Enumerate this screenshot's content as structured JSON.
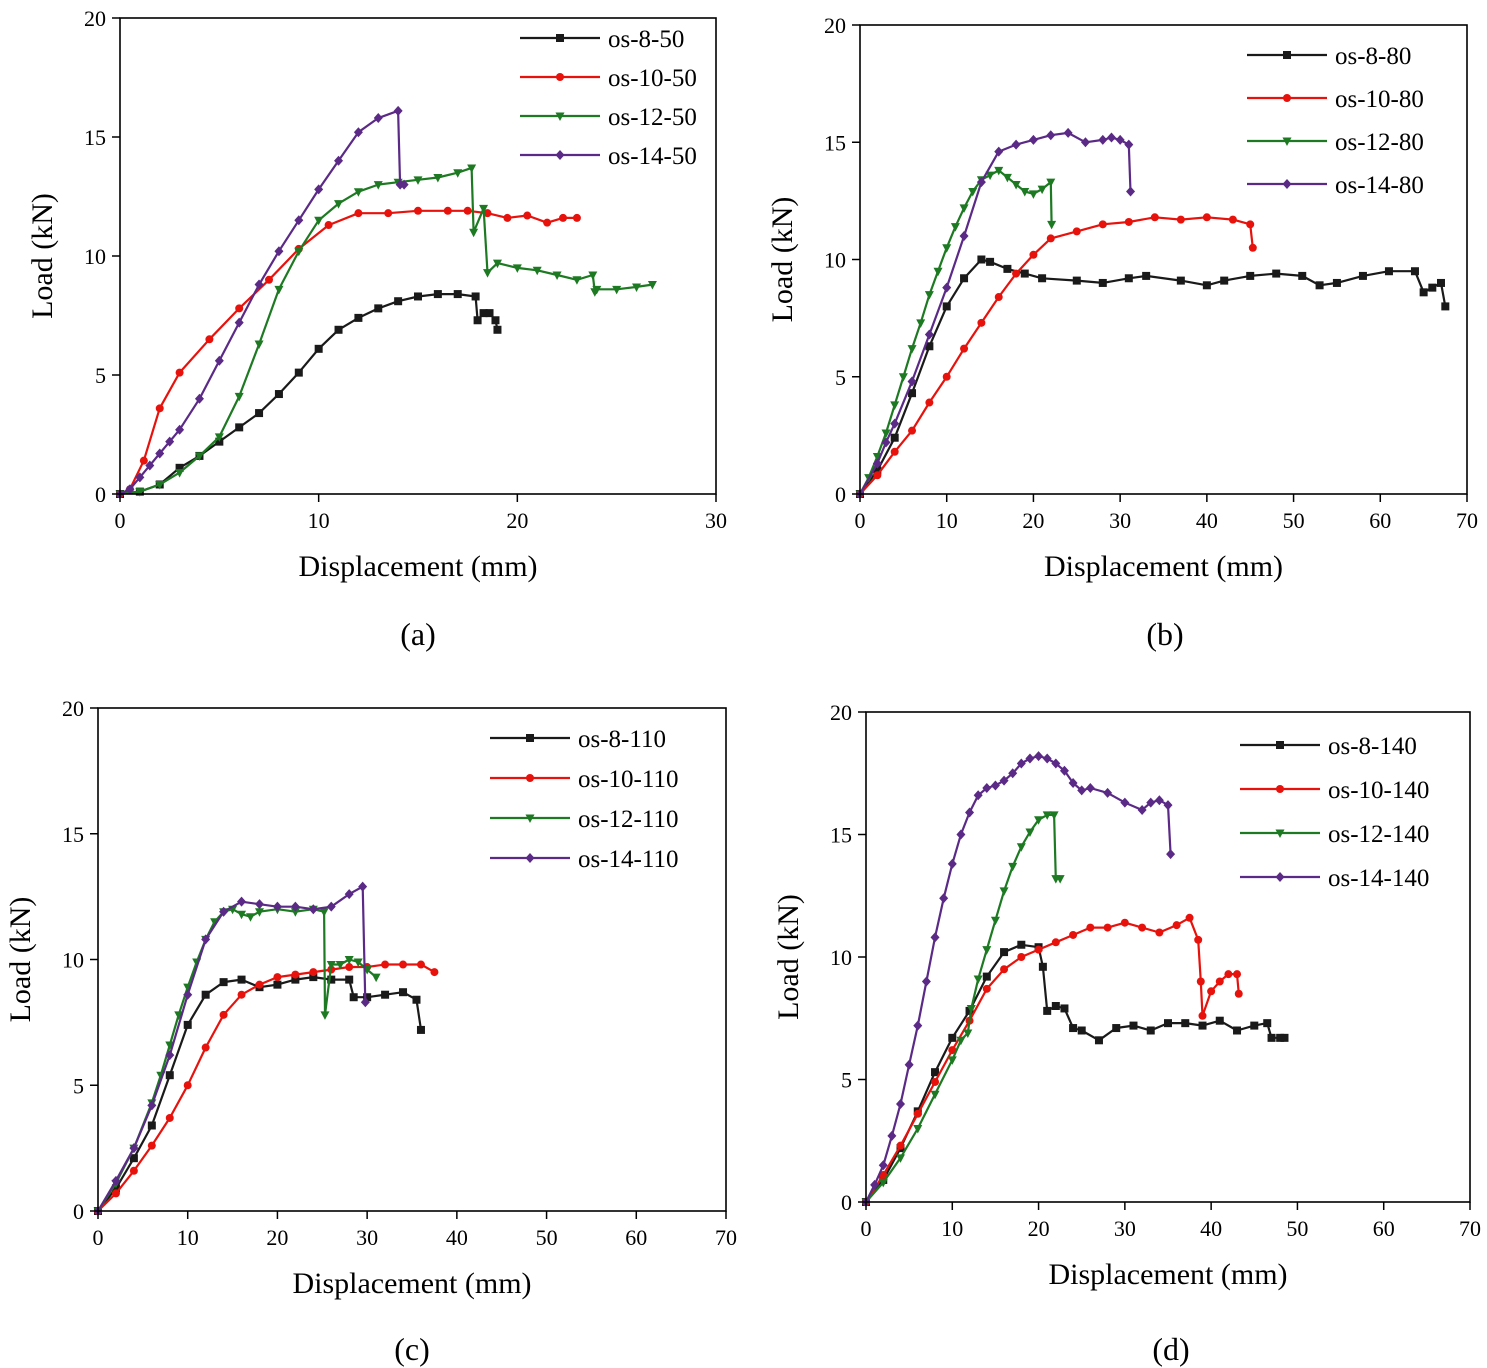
{
  "colors": {
    "black": "#1a1a1a",
    "red": "#e8120c",
    "green": "#1d7a22",
    "purple": "#5b2a86"
  },
  "chart_data": [
    {
      "type": "line",
      "panel_label": "(a)",
      "xlabel": "Displacement (mm)",
      "ylabel": "Load (kN)",
      "xlim": [
        0,
        30
      ],
      "ylim": [
        0,
        20
      ],
      "xticks": [
        0,
        10,
        20,
        30
      ],
      "yticks": [
        0,
        5,
        10,
        15,
        20
      ],
      "legend_position": "top-right",
      "series": [
        {
          "name": "os-8-50",
          "color": "#1a1a1a",
          "marker": "square",
          "x": [
            0,
            1,
            2,
            3,
            4,
            5,
            6,
            7,
            8,
            9,
            10,
            11,
            12,
            13,
            14,
            15,
            16,
            17,
            17.9,
            18.0,
            18.3,
            18.6,
            18.9,
            19.0
          ],
          "y": [
            0,
            0.1,
            0.4,
            1.1,
            1.6,
            2.2,
            2.8,
            3.4,
            4.2,
            5.1,
            6.1,
            6.9,
            7.4,
            7.8,
            8.1,
            8.3,
            8.4,
            8.4,
            8.3,
            7.3,
            7.6,
            7.6,
            7.3,
            6.9
          ]
        },
        {
          "name": "os-10-50",
          "color": "#e8120c",
          "marker": "circle",
          "x": [
            0,
            0.5,
            1.2,
            2,
            3,
            4.5,
            6,
            7.5,
            9,
            10.5,
            12,
            13.5,
            15,
            16.5,
            17.5,
            18.5,
            19.5,
            20.5,
            21.5,
            22.3,
            23
          ],
          "y": [
            0,
            0.2,
            1.4,
            3.6,
            5.1,
            6.5,
            7.8,
            9.0,
            10.3,
            11.3,
            11.8,
            11.8,
            11.9,
            11.9,
            11.9,
            11.8,
            11.6,
            11.7,
            11.4,
            11.6,
            11.6
          ]
        },
        {
          "name": "os-12-50",
          "color": "#1d7a22",
          "marker": "triangle-down",
          "x": [
            0,
            1,
            2,
            3,
            4,
            5,
            6,
            7,
            8,
            9,
            10,
            11,
            12,
            13,
            14,
            15,
            16,
            17,
            17.7,
            17.8,
            18.3,
            18.5,
            19,
            20,
            21,
            22,
            23,
            23.8,
            23.9,
            24,
            25,
            26,
            26.8
          ],
          "y": [
            0,
            0.1,
            0.4,
            0.9,
            1.6,
            2.4,
            4.1,
            6.3,
            8.6,
            10.2,
            11.5,
            12.2,
            12.7,
            13.0,
            13.1,
            13.2,
            13.3,
            13.5,
            13.7,
            11.0,
            12.0,
            9.3,
            9.7,
            9.5,
            9.4,
            9.2,
            9.0,
            9.2,
            8.5,
            8.6,
            8.6,
            8.7,
            8.8
          ]
        },
        {
          "name": "os-14-50",
          "color": "#5b2a86",
          "marker": "diamond",
          "x": [
            0,
            0.5,
            1,
            1.5,
            2,
            2.5,
            3,
            4,
            5,
            6,
            7,
            8,
            9,
            10,
            11,
            12,
            13,
            14,
            14.1,
            14.3
          ],
          "y": [
            0,
            0.2,
            0.7,
            1.2,
            1.7,
            2.2,
            2.7,
            4.0,
            5.6,
            7.2,
            8.8,
            10.2,
            11.5,
            12.8,
            14.0,
            15.2,
            15.8,
            16.1,
            13.0,
            13.0
          ]
        }
      ]
    },
    {
      "type": "line",
      "panel_label": "(b)",
      "xlabel": "Displacement (mm)",
      "ylabel": "Load (kN)",
      "xlim": [
        0,
        70
      ],
      "ylim": [
        0,
        20
      ],
      "xticks": [
        0,
        10,
        20,
        30,
        40,
        50,
        60,
        70
      ],
      "yticks": [
        0,
        5,
        10,
        15,
        20
      ],
      "legend_position": "top-right",
      "series": [
        {
          "name": "os-8-80",
          "color": "#1a1a1a",
          "marker": "square",
          "x": [
            0,
            2,
            4,
            6,
            8,
            10,
            12,
            14,
            15,
            17,
            19,
            21,
            25,
            28,
            31,
            33,
            37,
            40,
            42,
            45,
            48,
            51,
            53,
            55,
            58,
            61,
            64,
            65,
            66,
            67,
            67.5
          ],
          "y": [
            0,
            1.0,
            2.4,
            4.3,
            6.3,
            8.0,
            9.2,
            10.0,
            9.9,
            9.6,
            9.4,
            9.2,
            9.1,
            9.0,
            9.2,
            9.3,
            9.1,
            8.9,
            9.1,
            9.3,
            9.4,
            9.3,
            8.9,
            9.0,
            9.3,
            9.5,
            9.5,
            8.6,
            8.8,
            9.0,
            8.0
          ]
        },
        {
          "name": "os-10-80",
          "color": "#e8120c",
          "marker": "circle",
          "x": [
            0,
            2,
            4,
            6,
            8,
            10,
            12,
            14,
            16,
            18,
            20,
            22,
            25,
            28,
            31,
            34,
            37,
            40,
            43,
            45,
            45.3
          ],
          "y": [
            0,
            0.8,
            1.8,
            2.7,
            3.9,
            5.0,
            6.2,
            7.3,
            8.4,
            9.4,
            10.2,
            10.9,
            11.2,
            11.5,
            11.6,
            11.8,
            11.7,
            11.8,
            11.7,
            11.5,
            10.5
          ]
        },
        {
          "name": "os-12-80",
          "color": "#1d7a22",
          "marker": "triangle-down",
          "x": [
            0,
            1,
            2,
            3,
            4,
            5,
            6,
            7,
            8,
            9,
            10,
            11,
            12,
            13,
            14,
            15,
            16,
            17,
            18,
            19,
            20,
            21,
            22,
            22.1
          ],
          "y": [
            0,
            0.7,
            1.6,
            2.6,
            3.8,
            5.0,
            6.2,
            7.3,
            8.5,
            9.5,
            10.5,
            11.4,
            12.2,
            12.9,
            13.4,
            13.6,
            13.8,
            13.5,
            13.2,
            12.9,
            12.8,
            13.0,
            13.3,
            11.5
          ]
        },
        {
          "name": "os-14-80",
          "color": "#5b2a86",
          "marker": "diamond",
          "x": [
            0,
            2,
            3,
            4,
            6,
            8,
            10,
            12,
            14,
            16,
            18,
            20,
            22,
            24,
            26,
            28,
            29,
            30,
            31,
            31.2
          ],
          "y": [
            0,
            1.3,
            2.2,
            3.0,
            4.8,
            6.8,
            8.8,
            11.0,
            13.3,
            14.6,
            14.9,
            15.1,
            15.3,
            15.4,
            15.0,
            15.1,
            15.2,
            15.1,
            14.9,
            12.9
          ]
        }
      ]
    },
    {
      "type": "line",
      "panel_label": "(c)",
      "xlabel": "Displacement (mm)",
      "ylabel": "Load (kN)",
      "xlim": [
        0,
        70
      ],
      "ylim": [
        0,
        20
      ],
      "xticks": [
        0,
        10,
        20,
        30,
        40,
        50,
        60,
        70
      ],
      "yticks": [
        0,
        5,
        10,
        15,
        20
      ],
      "legend_position": "top-right",
      "series": [
        {
          "name": "os-8-110",
          "color": "#1a1a1a",
          "marker": "square",
          "x": [
            0,
            2,
            4,
            6,
            8,
            10,
            12,
            14,
            16,
            18,
            20,
            22,
            24,
            26,
            28,
            28.5,
            30,
            32,
            34,
            35.5,
            36
          ],
          "y": [
            0,
            0.9,
            2.1,
            3.4,
            5.4,
            7.4,
            8.6,
            9.1,
            9.2,
            8.9,
            9.0,
            9.2,
            9.3,
            9.2,
            9.2,
            8.5,
            8.5,
            8.6,
            8.7,
            8.4,
            7.2
          ]
        },
        {
          "name": "os-10-110",
          "color": "#e8120c",
          "marker": "circle",
          "x": [
            0,
            2,
            4,
            6,
            8,
            10,
            12,
            14,
            16,
            18,
            20,
            22,
            24,
            26,
            28,
            30,
            32,
            34,
            36,
            37.5
          ],
          "y": [
            0,
            0.7,
            1.6,
            2.6,
            3.7,
            5.0,
            6.5,
            7.8,
            8.6,
            9.0,
            9.3,
            9.4,
            9.5,
            9.6,
            9.7,
            9.7,
            9.8,
            9.8,
            9.8,
            9.5
          ]
        },
        {
          "name": "os-12-110",
          "color": "#1d7a22",
          "marker": "triangle-down",
          "x": [
            0,
            2,
            4,
            6,
            7,
            8,
            9,
            10,
            11,
            12,
            13,
            14,
            15,
            16,
            17,
            18,
            20,
            22,
            24,
            25.2,
            25.3,
            26,
            27,
            28,
            29,
            30,
            31
          ],
          "y": [
            0,
            1.1,
            2.5,
            4.3,
            5.4,
            6.6,
            7.8,
            8.9,
            9.9,
            10.8,
            11.5,
            11.9,
            12.0,
            11.8,
            11.7,
            11.9,
            12.0,
            11.9,
            12.0,
            11.9,
            7.8,
            9.8,
            9.8,
            10.0,
            9.9,
            9.6,
            9.3
          ]
        },
        {
          "name": "os-14-110",
          "color": "#5b2a86",
          "marker": "diamond",
          "x": [
            0,
            2,
            4,
            6,
            8,
            10,
            12,
            14,
            16,
            18,
            20,
            22,
            24,
            26,
            28,
            29.5,
            29.8
          ],
          "y": [
            0,
            1.2,
            2.5,
            4.2,
            6.2,
            8.6,
            10.8,
            11.9,
            12.3,
            12.2,
            12.1,
            12.1,
            12.0,
            12.1,
            12.6,
            12.9,
            8.3
          ]
        }
      ]
    },
    {
      "type": "line",
      "panel_label": "(d)",
      "xlabel": "Displacement (mm)",
      "ylabel": "Load (kN)",
      "xlim": [
        0,
        70
      ],
      "ylim": [
        0,
        20
      ],
      "xticks": [
        0,
        10,
        20,
        30,
        40,
        50,
        60,
        70
      ],
      "yticks": [
        0,
        5,
        10,
        15,
        20
      ],
      "legend_position": "top-right",
      "series": [
        {
          "name": "os-8-140",
          "color": "#1a1a1a",
          "marker": "square",
          "x": [
            0,
            2,
            4,
            6,
            8,
            10,
            12,
            14,
            16,
            18,
            20,
            20.5,
            21,
            22,
            23,
            24,
            25,
            27,
            29,
            31,
            33,
            35,
            37,
            39,
            41,
            43,
            45,
            46.5,
            47,
            48,
            48.5
          ],
          "y": [
            0,
            0.9,
            2.2,
            3.7,
            5.3,
            6.7,
            7.8,
            9.2,
            10.2,
            10.5,
            10.4,
            9.6,
            7.8,
            8.0,
            7.9,
            7.1,
            7.0,
            6.6,
            7.1,
            7.2,
            7.0,
            7.3,
            7.3,
            7.2,
            7.4,
            7.0,
            7.2,
            7.3,
            6.7,
            6.7,
            6.7
          ]
        },
        {
          "name": "os-10-140",
          "color": "#e8120c",
          "marker": "circle",
          "x": [
            0,
            2,
            4,
            6,
            8,
            10,
            12,
            14,
            16,
            18,
            20,
            22,
            24,
            26,
            28,
            30,
            32,
            34,
            36,
            37.5,
            38.5,
            38.8,
            39,
            40,
            41,
            42,
            43,
            43.2
          ],
          "y": [
            0,
            1.1,
            2.3,
            3.6,
            4.9,
            6.2,
            7.4,
            8.7,
            9.5,
            10.0,
            10.3,
            10.6,
            10.9,
            11.2,
            11.2,
            11.4,
            11.2,
            11.0,
            11.3,
            11.6,
            10.7,
            9.0,
            7.6,
            8.6,
            9.0,
            9.3,
            9.3,
            8.5
          ]
        },
        {
          "name": "os-12-140",
          "color": "#1d7a22",
          "marker": "triangle-down",
          "x": [
            0,
            2,
            4,
            6,
            8,
            10,
            11,
            11.8,
            12.2,
            13,
            14,
            15,
            16,
            17,
            18,
            19,
            20,
            21,
            21.8,
            22,
            22.5
          ],
          "y": [
            0,
            0.8,
            1.8,
            3.0,
            4.4,
            5.8,
            6.6,
            6.9,
            7.9,
            9.1,
            10.3,
            11.5,
            12.7,
            13.7,
            14.5,
            15.1,
            15.6,
            15.8,
            15.8,
            13.2,
            13.2
          ]
        },
        {
          "name": "os-14-140",
          "color": "#5b2a86",
          "marker": "diamond",
          "x": [
            0,
            1,
            2,
            3,
            4,
            5,
            6,
            7,
            8,
            9,
            10,
            11,
            12,
            13,
            14,
            15,
            16,
            17,
            18,
            19,
            20,
            21,
            22,
            23,
            24,
            25,
            26,
            28,
            30,
            32,
            33,
            34,
            35,
            35.3
          ],
          "y": [
            0,
            0.7,
            1.5,
            2.7,
            4.0,
            5.6,
            7.2,
            9.0,
            10.8,
            12.4,
            13.8,
            15.0,
            15.9,
            16.6,
            16.9,
            17.0,
            17.2,
            17.5,
            17.9,
            18.1,
            18.2,
            18.1,
            17.9,
            17.6,
            17.1,
            16.8,
            16.9,
            16.7,
            16.3,
            16.0,
            16.3,
            16.4,
            16.2,
            14.2
          ]
        }
      ]
    }
  ]
}
